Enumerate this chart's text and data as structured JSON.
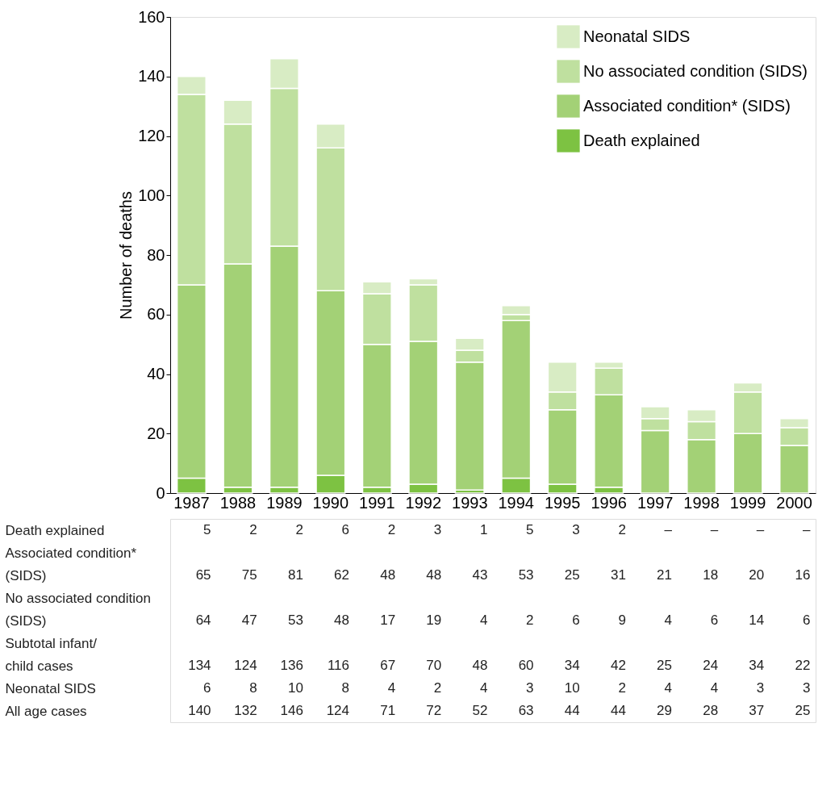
{
  "chart_data": {
    "type": "bar",
    "stacked": true,
    "ylabel": "Number of deaths",
    "categories": [
      "1987",
      "1988",
      "1989",
      "1990",
      "1991",
      "1992",
      "1993",
      "1994",
      "1995",
      "1996",
      "1997",
      "1998",
      "1999",
      "2000"
    ],
    "series": [
      {
        "name": "Death explained",
        "color": "#7dc242",
        "values": [
          5,
          2,
          2,
          6,
          2,
          3,
          1,
          5,
          3,
          2,
          null,
          null,
          null,
          null
        ],
        "value_labels": [
          "5",
          "2",
          "2",
          "6",
          "2",
          "3",
          "1",
          "5",
          "3",
          "2",
          "–",
          "–",
          "–",
          "–"
        ]
      },
      {
        "name": "Associated condition* (SIDS)",
        "color": "#a3d176",
        "values": [
          65,
          75,
          81,
          62,
          48,
          48,
          43,
          53,
          25,
          31,
          21,
          18,
          20,
          16
        ],
        "value_labels": [
          "65",
          "75",
          "81",
          "62",
          "48",
          "48",
          "43",
          "53",
          "25",
          "31",
          "21",
          "18",
          "20",
          "16"
        ]
      },
      {
        "name": "No associated condition (SIDS)",
        "color": "#bfe09f",
        "values": [
          64,
          47,
          53,
          48,
          17,
          19,
          4,
          2,
          6,
          9,
          4,
          6,
          14,
          6
        ],
        "value_labels": [
          "64",
          "47",
          "53",
          "48",
          "17",
          "19",
          "4",
          "2",
          "6",
          "9",
          "4",
          "6",
          "14",
          "6"
        ]
      },
      {
        "name": "Neonatal SIDS",
        "color": "#d8ecc4",
        "values": [
          6,
          8,
          10,
          8,
          4,
          2,
          4,
          3,
          10,
          2,
          4,
          4,
          3,
          3
        ],
        "value_labels": [
          "6",
          "8",
          "10",
          "8",
          "4",
          "2",
          "4",
          "3",
          "10",
          "2",
          "4",
          "4",
          "3",
          "3"
        ]
      }
    ],
    "annotations": [
      "Subtotal infant/\nchild cases",
      "134",
      "124",
      "136",
      "116",
      "67",
      "70",
      "48",
      "60",
      "34",
      "42",
      "25",
      "24",
      "34",
      "22",
      "All age cases",
      "140",
      "132",
      "146",
      "124",
      "71",
      "72",
      "52",
      "63",
      "44",
      "44",
      "29",
      "28",
      "37",
      "25"
    ],
    "ylim": [
      0,
      160
    ],
    "yticks": [
      0,
      20,
      40,
      60,
      80,
      100,
      120,
      140,
      160
    ],
    "grid": false,
    "legend": "top right"
  }
}
